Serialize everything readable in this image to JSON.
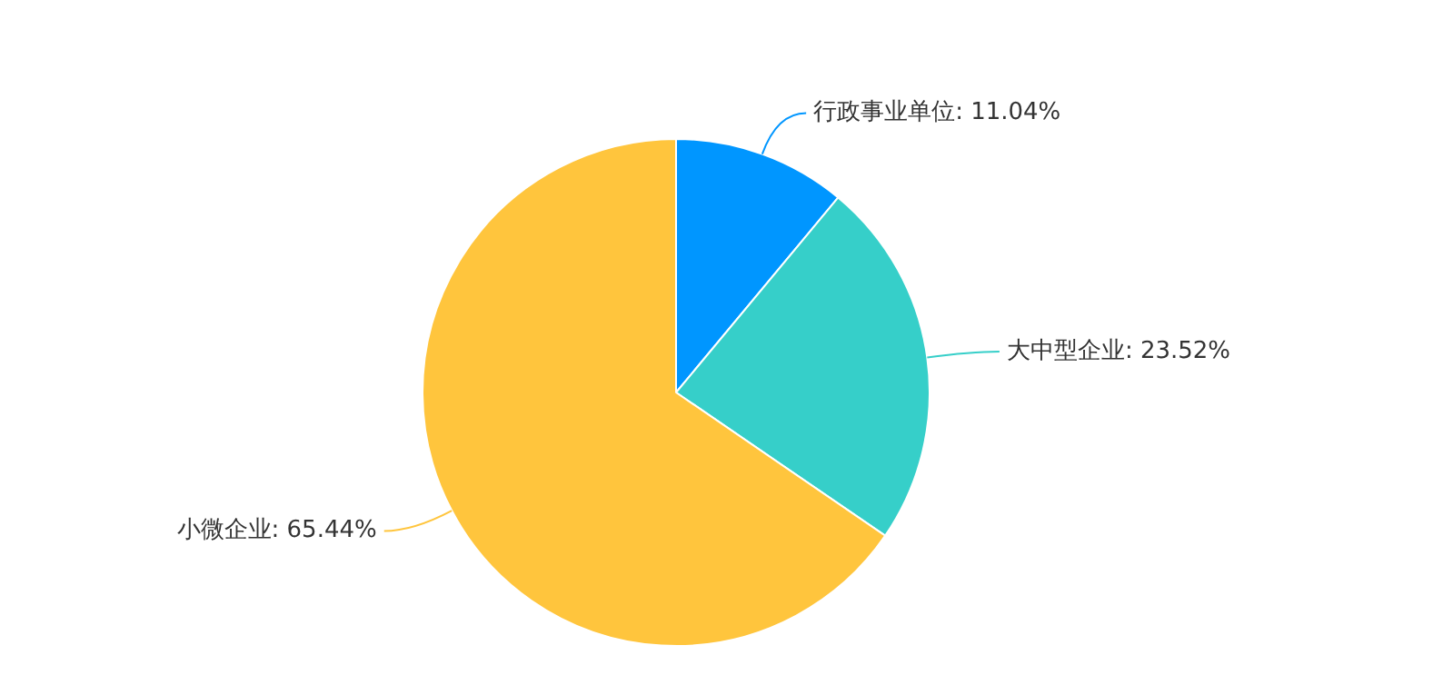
{
  "chart_data": {
    "type": "pie",
    "categories": [
      "行政事业单位",
      "大中型企业",
      "小微企业"
    ],
    "values": [
      11.04,
      23.52,
      65.44
    ],
    "colors": [
      "#0096ff",
      "#36cfc9",
      "#ffc53d"
    ],
    "value_labels": [
      "11.04%",
      "23.52%",
      "65.44%"
    ],
    "legend": false
  }
}
